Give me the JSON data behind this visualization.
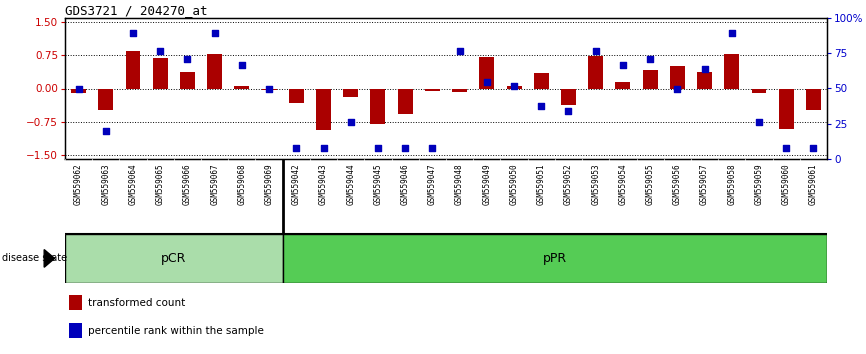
{
  "title": "GDS3721 / 204270_at",
  "samples": [
    "GSM559062",
    "GSM559063",
    "GSM559064",
    "GSM559065",
    "GSM559066",
    "GSM559067",
    "GSM559068",
    "GSM559069",
    "GSM559042",
    "GSM559043",
    "GSM559044",
    "GSM559045",
    "GSM559046",
    "GSM559047",
    "GSM559048",
    "GSM559049",
    "GSM559050",
    "GSM559051",
    "GSM559052",
    "GSM559053",
    "GSM559054",
    "GSM559055",
    "GSM559056",
    "GSM559057",
    "GSM559058",
    "GSM559059",
    "GSM559060",
    "GSM559061"
  ],
  "bar_values": [
    -0.1,
    -0.48,
    0.85,
    0.7,
    0.38,
    0.78,
    0.05,
    -0.03,
    -0.33,
    -0.93,
    -0.2,
    -0.8,
    -0.58,
    -0.05,
    -0.08,
    0.72,
    0.05,
    0.35,
    -0.38,
    0.74,
    0.15,
    0.42,
    0.5,
    0.38,
    0.78,
    -0.1,
    -0.92,
    -0.48
  ],
  "percentile_values": [
    50,
    18,
    92,
    78,
    72,
    92,
    68,
    50,
    5,
    5,
    25,
    5,
    5,
    5,
    78,
    55,
    52,
    37,
    33,
    78,
    68,
    72,
    50,
    65,
    92,
    25,
    5,
    5
  ],
  "pCR_count": 8,
  "pPR_count": 20,
  "bar_color": "#aa0000",
  "dot_color": "#0000bb",
  "bar_width": 0.55,
  "ylim": [
    -1.6,
    1.6
  ],
  "yticks_left": [
    -1.5,
    -0.75,
    0.0,
    0.75,
    1.5
  ],
  "yticks_right": [
    0,
    25,
    50,
    75,
    100
  ],
  "ylabel_left_color": "#cc0000",
  "ylabel_right_color": "#0000cc",
  "pCR_color": "#aaddaa",
  "pPR_color": "#55cc55",
  "disease_state_label": "disease state",
  "legend_bar_label": "transformed count",
  "legend_dot_label": "percentile rank within the sample",
  "background_color": "#ffffff",
  "plot_bg_color": "#ffffff",
  "label_bg_color": "#cccccc",
  "axis_label_size": 7.5,
  "tick_label_size": 6.5,
  "title_fontsize": 9
}
